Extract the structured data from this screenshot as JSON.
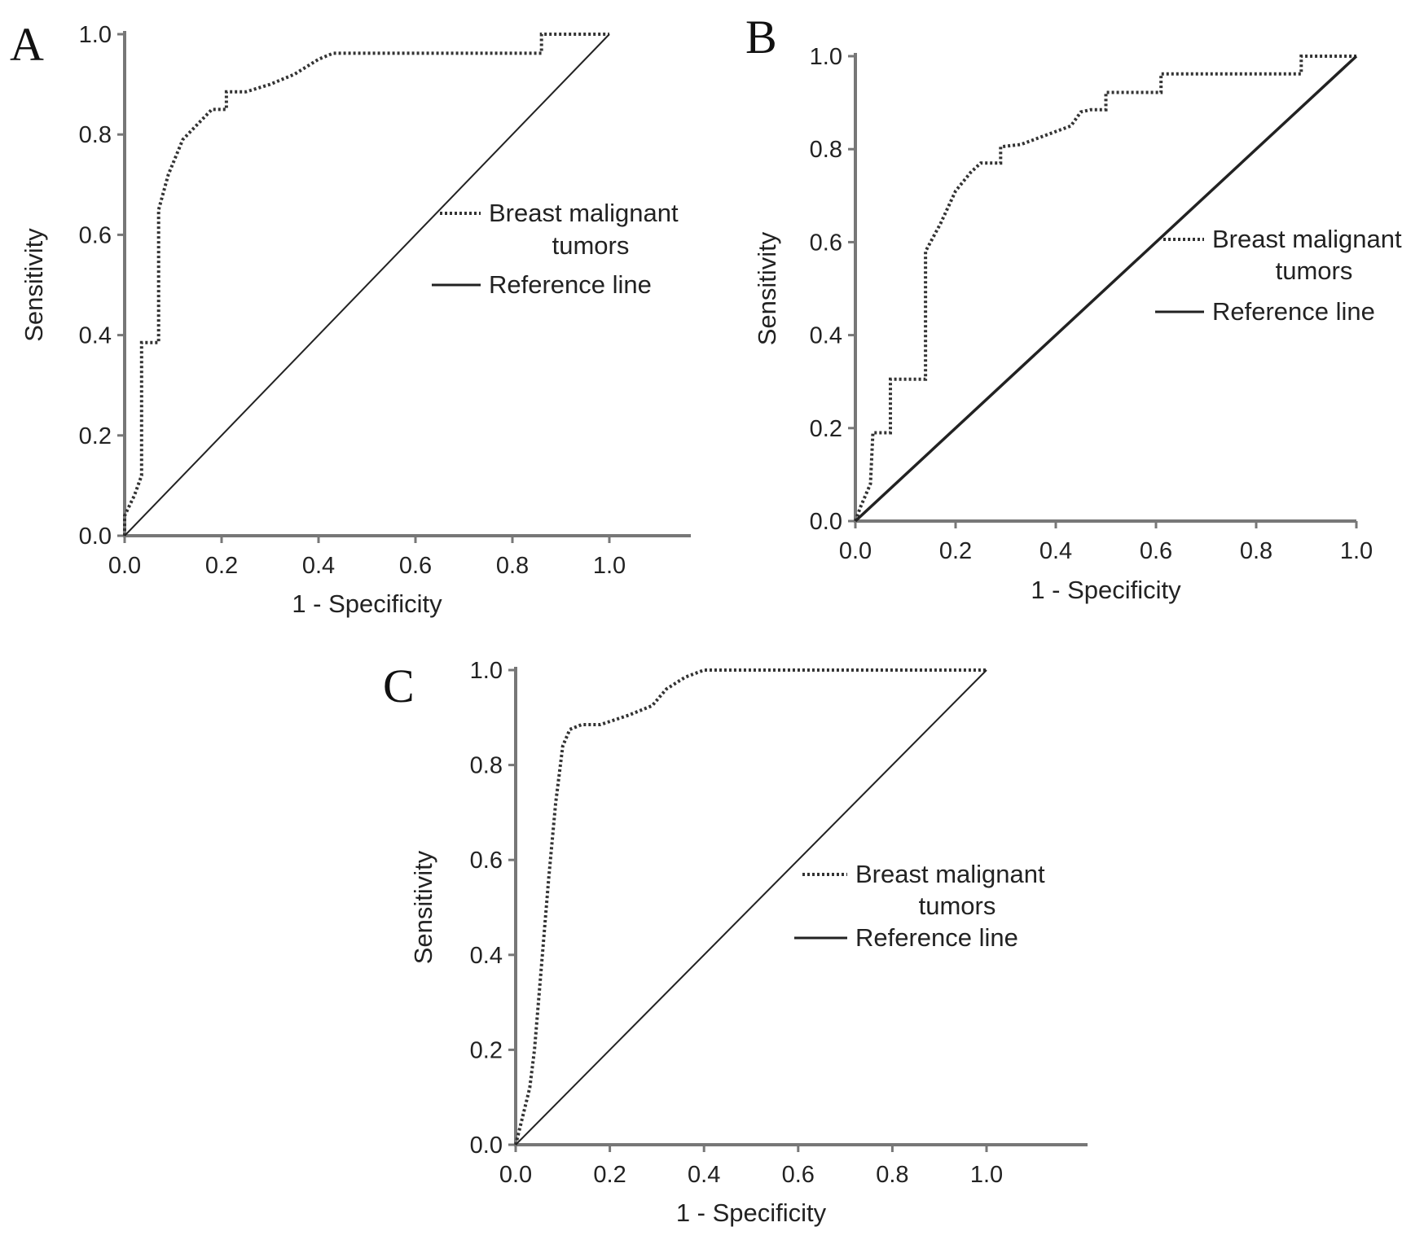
{
  "chart_data": [
    {
      "type": "line",
      "panel_label": "A",
      "xlabel": "1 - Specificity",
      "ylabel": "Sensitivity",
      "xlim": [
        0.0,
        1.15
      ],
      "ylim": [
        0.0,
        1.0
      ],
      "x_ticks": [
        0.0,
        0.2,
        0.4,
        0.6,
        0.8,
        1.0
      ],
      "y_ticks": [
        0.0,
        0.2,
        0.4,
        0.6,
        0.8,
        1.0
      ],
      "x_tick_labels": [
        "0.0",
        "0.2",
        "0.4",
        "0.6",
        "0.8",
        "1.0"
      ],
      "y_tick_labels": [
        "0.0",
        "0.2",
        "0.4",
        "0.6",
        "0.8",
        "1.0"
      ],
      "legend": {
        "position": "right-center",
        "entries": [
          {
            "label_lines": [
              "Breast malignant",
              "tumors"
            ],
            "style": "dotted"
          },
          {
            "label_lines": [
              "Reference line"
            ],
            "style": "solid"
          }
        ]
      },
      "series": [
        {
          "name": "Breast malignant tumors",
          "style": "dotted",
          "points": [
            [
              0.0,
              0.0
            ],
            [
              0.0,
              0.04
            ],
            [
              0.01,
              0.06
            ],
            [
              0.02,
              0.08
            ],
            [
              0.035,
              0.12
            ],
            [
              0.035,
              0.385
            ],
            [
              0.07,
              0.385
            ],
            [
              0.07,
              0.65
            ],
            [
              0.09,
              0.72
            ],
            [
              0.12,
              0.79
            ],
            [
              0.16,
              0.83
            ],
            [
              0.18,
              0.85
            ],
            [
              0.21,
              0.85
            ],
            [
              0.21,
              0.885
            ],
            [
              0.25,
              0.885
            ],
            [
              0.3,
              0.9
            ],
            [
              0.35,
              0.92
            ],
            [
              0.4,
              0.95
            ],
            [
              0.43,
              0.962
            ],
            [
              0.86,
              0.962
            ],
            [
              0.86,
              1.0
            ],
            [
              1.0,
              1.0
            ]
          ]
        },
        {
          "name": "Reference line",
          "style": "solid",
          "points": [
            [
              0.0,
              0.0
            ],
            [
              1.0,
              1.0
            ]
          ]
        }
      ]
    },
    {
      "type": "line",
      "panel_label": "B",
      "xlabel": "1 - Specificity",
      "ylabel": "Sensitivity",
      "xlim": [
        0.0,
        1.0
      ],
      "ylim": [
        0.0,
        1.0
      ],
      "x_ticks": [
        0.0,
        0.2,
        0.4,
        0.6,
        0.8,
        1.0
      ],
      "y_ticks": [
        0.0,
        0.2,
        0.4,
        0.6,
        0.8,
        1.0
      ],
      "x_tick_labels": [
        "0.0",
        "0.2",
        "0.4",
        "0.6",
        "0.8",
        "1.0"
      ],
      "y_tick_labels": [
        "0.0",
        "0.2",
        "0.4",
        "0.6",
        "0.8",
        "1.0"
      ],
      "legend": {
        "position": "right-center",
        "entries": [
          {
            "label_lines": [
              "Breast malignant",
              "tumors"
            ],
            "style": "dotted"
          },
          {
            "label_lines": [
              "Reference line"
            ],
            "style": "solid"
          }
        ]
      },
      "series": [
        {
          "name": "Breast malignant tumors",
          "style": "dotted",
          "points": [
            [
              0.0,
              0.0
            ],
            [
              0.01,
              0.03
            ],
            [
              0.03,
              0.08
            ],
            [
              0.035,
              0.19
            ],
            [
              0.07,
              0.19
            ],
            [
              0.07,
              0.305
            ],
            [
              0.14,
              0.305
            ],
            [
              0.14,
              0.58
            ],
            [
              0.17,
              0.64
            ],
            [
              0.2,
              0.71
            ],
            [
              0.23,
              0.75
            ],
            [
              0.25,
              0.77
            ],
            [
              0.29,
              0.77
            ],
            [
              0.29,
              0.805
            ],
            [
              0.33,
              0.81
            ],
            [
              0.38,
              0.83
            ],
            [
              0.43,
              0.85
            ],
            [
              0.45,
              0.88
            ],
            [
              0.47,
              0.885
            ],
            [
              0.5,
              0.885
            ],
            [
              0.5,
              0.922
            ],
            [
              0.61,
              0.922
            ],
            [
              0.61,
              0.962
            ],
            [
              0.89,
              0.962
            ],
            [
              0.89,
              1.0
            ],
            [
              1.0,
              1.0
            ]
          ]
        },
        {
          "name": "Reference line",
          "style": "solid",
          "points": [
            [
              0.0,
              0.0
            ],
            [
              1.0,
              1.0
            ]
          ]
        }
      ]
    },
    {
      "type": "line",
      "panel_label": "C",
      "xlabel": "1 - Specificity",
      "ylabel": "Sensitivity",
      "xlim": [
        0.0,
        1.22
      ],
      "ylim": [
        0.0,
        1.0
      ],
      "x_ticks": [
        0.0,
        0.2,
        0.4,
        0.6,
        0.8,
        1.0
      ],
      "y_ticks": [
        0.0,
        0.2,
        0.4,
        0.6,
        0.8,
        1.0
      ],
      "x_tick_labels": [
        "0.0",
        "0.2",
        "0.4",
        "0.6",
        "0.8",
        "1.0"
      ],
      "y_tick_labels": [
        "0.0",
        "0.2",
        "0.4",
        "0.6",
        "0.8",
        "1.0"
      ],
      "legend": {
        "position": "right-center",
        "entries": [
          {
            "label_lines": [
              "Breast malignant",
              "tumors"
            ],
            "style": "dotted"
          },
          {
            "label_lines": [
              "Reference line"
            ],
            "style": "solid"
          }
        ]
      },
      "series": [
        {
          "name": "Breast malignant tumors",
          "style": "dotted",
          "points": [
            [
              0.0,
              0.0
            ],
            [
              0.015,
              0.06
            ],
            [
              0.03,
              0.12
            ],
            [
              0.04,
              0.2
            ],
            [
              0.055,
              0.38
            ],
            [
              0.07,
              0.56
            ],
            [
              0.085,
              0.72
            ],
            [
              0.1,
              0.84
            ],
            [
              0.115,
              0.875
            ],
            [
              0.14,
              0.885
            ],
            [
              0.18,
              0.885
            ],
            [
              0.24,
              0.905
            ],
            [
              0.29,
              0.925
            ],
            [
              0.32,
              0.96
            ],
            [
              0.36,
              0.985
            ],
            [
              0.4,
              1.0
            ],
            [
              1.0,
              1.0
            ]
          ]
        },
        {
          "name": "Reference line",
          "style": "solid",
          "points": [
            [
              0.0,
              0.0
            ],
            [
              1.0,
              1.0
            ]
          ]
        }
      ]
    }
  ]
}
